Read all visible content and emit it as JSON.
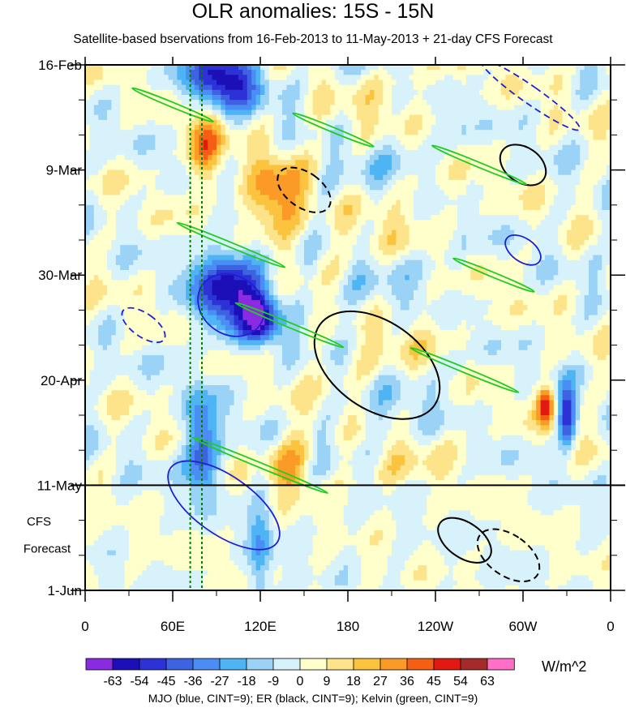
{
  "chart_data": {
    "type": "heatmap",
    "title": "OLR anomalies: 15S - 15N",
    "subtitle": "Satellite-based bservations from 16-Feb-2013 to 11-May-2013 + 21-day CFS Forecast",
    "x_axis": {
      "ticks": [
        {
          "lon": 0,
          "label": "0"
        },
        {
          "lon": 60,
          "label": "60E"
        },
        {
          "lon": 120,
          "label": "120E"
        },
        {
          "lon": 180,
          "label": "180"
        },
        {
          "lon": 240,
          "label": "120W"
        },
        {
          "lon": 300,
          "label": "60W"
        },
        {
          "lon": 360,
          "label": "0"
        }
      ],
      "range": [
        0,
        360
      ]
    },
    "y_axis": {
      "ticks": [
        {
          "day": 0,
          "label": "16-Feb"
        },
        {
          "day": 21,
          "label": "9-Mar"
        },
        {
          "day": 42,
          "label": "30-Mar"
        },
        {
          "day": 63,
          "label": "20-Apr"
        },
        {
          "day": 84,
          "label": "11-May"
        },
        {
          "day": 105,
          "label": "1-Jun"
        }
      ],
      "range_days": [
        0,
        105
      ],
      "forecast_start_day": 84,
      "forecast_label_line1": "CFS",
      "forecast_label_line2": "Forecast"
    },
    "dotted_meridians_lon": [
      72,
      80
    ],
    "colorbar": {
      "labels": [
        "-63",
        "-54",
        "-45",
        "-36",
        "-27",
        "-18",
        "-9",
        "0",
        "9",
        "18",
        "27",
        "36",
        "45",
        "54",
        "63"
      ],
      "colors": [
        "#8a2be2",
        "#1c0fb8",
        "#2c32d6",
        "#3d63e0",
        "#4a8ef5",
        "#4fb4f3",
        "#9bd3f7",
        "#d8f2fb",
        "#ffffcc",
        "#fde48a",
        "#fbc33e",
        "#fb9a27",
        "#f55f13",
        "#e21812",
        "#a52a2a",
        "#ff6ec7"
      ],
      "units": "W/m^2"
    },
    "fields": {
      "olr_anomaly_features": [
        {
          "lon": 95,
          "day": 3,
          "value": -60,
          "rx": 25,
          "ry": 6
        },
        {
          "lon": 82,
          "day": 16,
          "value": 36,
          "rx": 12,
          "ry": 8
        },
        {
          "lon": 130,
          "day": 27,
          "value": 40,
          "rx": 18,
          "ry": 8
        },
        {
          "lon": 100,
          "day": 45,
          "value": -60,
          "rx": 25,
          "ry": 8
        },
        {
          "lon": 120,
          "day": 51,
          "value": -50,
          "rx": 12,
          "ry": 5
        },
        {
          "lon": 315,
          "day": 68,
          "value": 45,
          "rx": 6,
          "ry": 4
        },
        {
          "lon": 330,
          "day": 70,
          "value": -54,
          "rx": 6,
          "ry": 6
        },
        {
          "lon": 140,
          "day": 80,
          "value": 30,
          "rx": 15,
          "ry": 6
        },
        {
          "lon": 120,
          "day": 97,
          "value": -40,
          "rx": 8,
          "ry": 12
        },
        {
          "lon": 80,
          "day": 77,
          "value": -45,
          "rx": 12,
          "ry": 10
        }
      ],
      "mjo_contours": [
        {
          "lon": 100,
          "day": 48,
          "rx": 20,
          "ry": 7,
          "dashed": false
        },
        {
          "lon": 95,
          "day": 88,
          "rx": 20,
          "ry": 13,
          "dashed": false
        },
        {
          "lon": 40,
          "day": 52,
          "rx": 8,
          "ry": 5,
          "dashed": true
        },
        {
          "lon": 300,
          "day": 37,
          "rx": 8,
          "ry": 4,
          "dashed": false
        },
        {
          "lon": 305,
          "day": 6,
          "rx": 6,
          "ry": 12,
          "dashed": true
        }
      ],
      "er_contours": [
        {
          "lon": 200,
          "day": 60,
          "rx": 30,
          "ry": 14,
          "dashed": false
        },
        {
          "lon": 150,
          "day": 25,
          "rx": 12,
          "ry": 6,
          "dashed": true
        },
        {
          "lon": 260,
          "day": 95,
          "rx": 12,
          "ry": 6,
          "dashed": false
        },
        {
          "lon": 290,
          "day": 98,
          "rx": 14,
          "ry": 7,
          "dashed": true
        },
        {
          "lon": 300,
          "day": 20,
          "rx": 12,
          "ry": 5,
          "dashed": false
        }
      ],
      "kelvin_contours": [
        {
          "lon": 60,
          "day": 8,
          "len": 60,
          "slope": -0.12
        },
        {
          "lon": 170,
          "day": 13,
          "len": 60,
          "slope": -0.12
        },
        {
          "lon": 270,
          "day": 20,
          "len": 70,
          "slope": -0.12
        },
        {
          "lon": 100,
          "day": 36,
          "len": 80,
          "slope": -0.12
        },
        {
          "lon": 280,
          "day": 42,
          "len": 60,
          "slope": -0.12
        },
        {
          "lon": 140,
          "day": 52,
          "len": 80,
          "slope": -0.12
        },
        {
          "lon": 260,
          "day": 61,
          "len": 80,
          "slope": -0.12
        },
        {
          "lon": 120,
          "day": 80,
          "len": 100,
          "slope": -0.12
        }
      ]
    },
    "caption": "MJO (blue, CINT=9); ER (black, CINT=9); Kelvin (green, CINT=9)"
  }
}
